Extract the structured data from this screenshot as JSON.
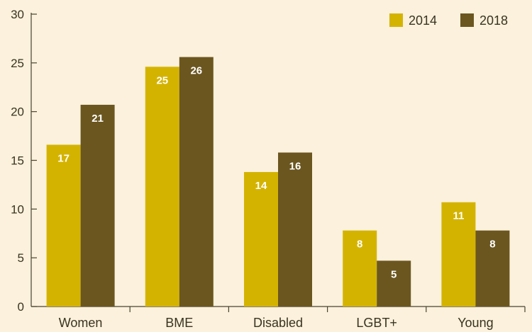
{
  "chart_data": {
    "type": "bar",
    "categories": [
      "Women",
      "BME",
      "Disabled",
      "LGBT+",
      "Young"
    ],
    "series": [
      {
        "name": "2014",
        "values": [
          16.6,
          24.6,
          13.8,
          7.8,
          10.7
        ],
        "labels": [
          "17",
          "25",
          "14",
          "8",
          "11"
        ],
        "color": "#d4b300"
      },
      {
        "name": "2018",
        "values": [
          20.7,
          25.6,
          15.8,
          4.7,
          7.8
        ],
        "labels": [
          "21",
          "26",
          "16",
          "5",
          "8"
        ],
        "color": "#6b5620"
      }
    ],
    "yticks": [
      "0",
      "5",
      "10",
      "15",
      "20",
      "25",
      "30"
    ],
    "ylim": [
      0,
      30
    ],
    "grid": false,
    "legend_position": "top-right"
  }
}
